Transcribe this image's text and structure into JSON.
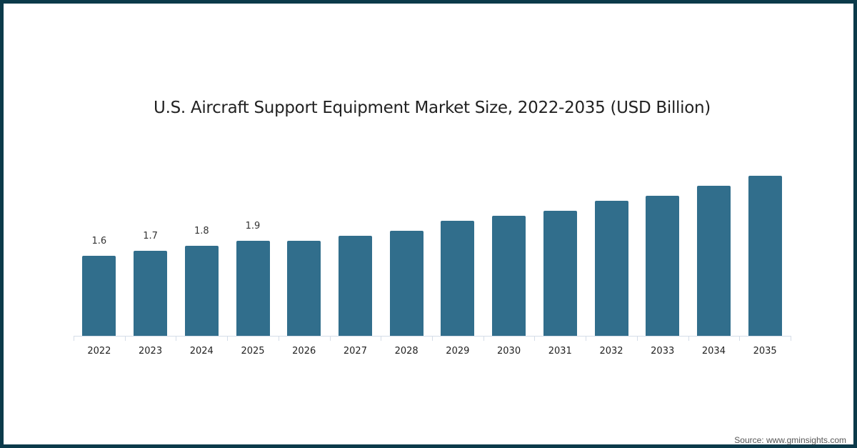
{
  "title": "U.S. Aircraft Support Equipment Market Size, 2022-2035 (USD Billion)",
  "source": "Source: www.gminsights.com",
  "colors": {
    "bar": "#316e8c",
    "frame": "#0b3a4a"
  },
  "chart_data": {
    "type": "bar",
    "title": "U.S. Aircraft Support Equipment Market Size, 2022-2035 (USD Billion)",
    "xlabel": "",
    "ylabel": "USD Billion",
    "categories": [
      "2022",
      "2023",
      "2024",
      "2025",
      "2026",
      "2027",
      "2028",
      "2029",
      "2030",
      "2031",
      "2032",
      "2033",
      "2034",
      "2035"
    ],
    "values": [
      1.6,
      1.7,
      1.8,
      1.9,
      1.9,
      2.0,
      2.1,
      2.3,
      2.4,
      2.5,
      2.7,
      2.8,
      3.0,
      3.2
    ],
    "data_labels": [
      "1.6",
      "1.7",
      "1.8",
      "1.9",
      "",
      "",
      "",
      "",
      "",
      "",
      "",
      "",
      "",
      ""
    ],
    "ylim": [
      0,
      3.5
    ],
    "grid": false,
    "legend": null
  }
}
